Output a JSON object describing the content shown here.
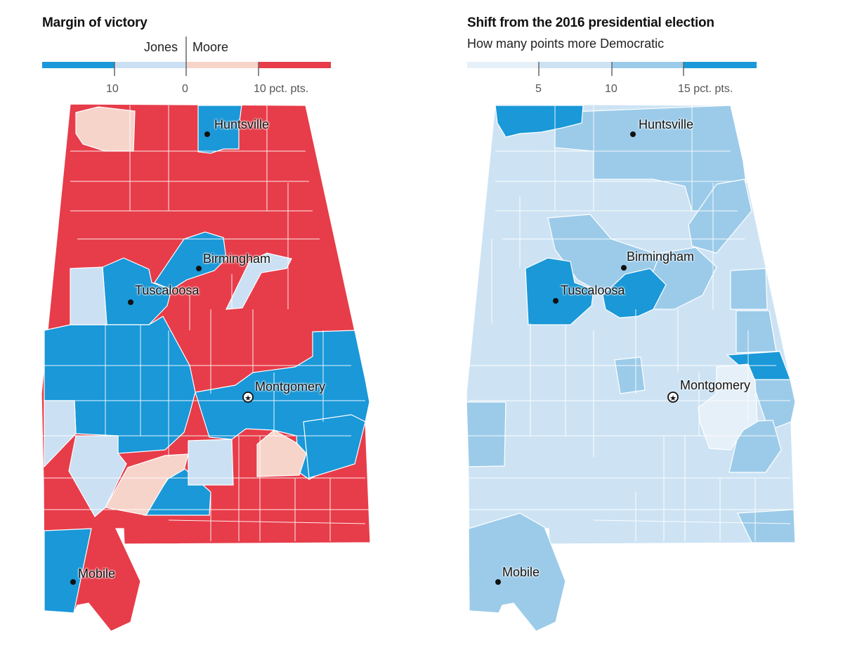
{
  "left_panel": {
    "title": "Margin of victory",
    "candidates": {
      "left": "Jones",
      "right": "Moore"
    },
    "legend": {
      "colors": [
        "#1a98d8",
        "#cbe0f3",
        "#f7d4ca",
        "#e73c49"
      ],
      "tick_labels": [
        "10",
        "0",
        "10 pct. pts."
      ]
    },
    "colors": {
      "jones_strong": "#1a98d8",
      "jones_lean": "#cbe0f3",
      "moore_lean": "#f7d4ca",
      "moore_strong": "#e73c49"
    },
    "cities": {
      "huntsville": "Huntsville",
      "birmingham": "Birmingham",
      "tuscaloosa": "Tuscaloosa",
      "montgomery": "Montgomery",
      "mobile": "Mobile"
    }
  },
  "right_panel": {
    "title": "Shift from the 2016 presidential election",
    "subtitle": "How many points more Democratic",
    "legend": {
      "colors": [
        "#e6f0f9",
        "#cde3f4",
        "#9ccbe9",
        "#1a98d8"
      ],
      "tick_labels": [
        "5",
        "10",
        "15 pct. pts."
      ]
    },
    "cities": {
      "huntsville": "Huntsville",
      "birmingham": "Birmingham",
      "tuscaloosa": "Tuscaloosa",
      "montgomery": "Montgomery",
      "mobile": "Mobile"
    }
  }
}
